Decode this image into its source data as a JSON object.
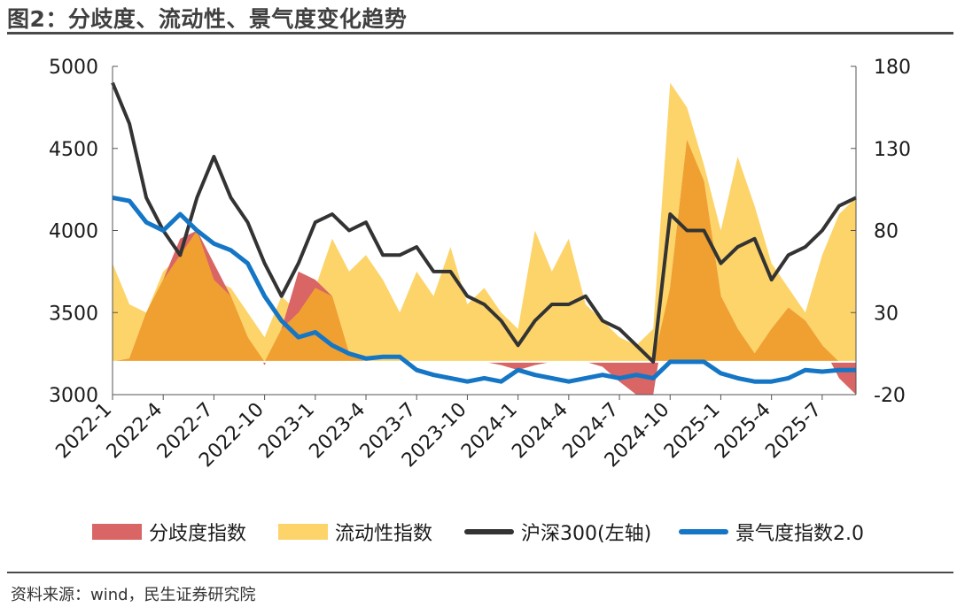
{
  "title": "图2：分歧度、流动性、景气度变化趋势",
  "source": "资料来源：wind，民生证券研究院",
  "colors": {
    "divergence": "#d96565",
    "liquidity": "#fcd46a",
    "overlap": "#f0a030",
    "csi300": "#333333",
    "prosperity": "#1576c6"
  },
  "legend": {
    "divergence": "分歧度指数",
    "liquidity": "流动性指数",
    "csi300": "沪深300(左轴)",
    "prosperity": "景气度指数2.0"
  },
  "chart_data": {
    "type": "line",
    "left_axis": {
      "ylim": [
        3000,
        5000
      ],
      "ticks": [
        "5000",
        "4500",
        "4000",
        "3500",
        "3000"
      ]
    },
    "right_axis": {
      "ylim": [
        -20,
        180
      ],
      "ticks": [
        "180",
        "130",
        "80",
        "30",
        "-20"
      ]
    },
    "x_ticks": [
      "2022-1",
      "2022-4",
      "2022-7",
      "2022-10",
      "2023-1",
      "2023-4",
      "2023-7",
      "2023-10",
      "2024-1",
      "2024-4",
      "2024-7",
      "2024-10",
      "2025-1",
      "2025-4",
      "2025-7"
    ],
    "x_range": [
      "2022-01",
      "2025-09"
    ],
    "series": [
      {
        "name": "分歧度指数",
        "type": "area",
        "axis": "right",
        "points": [
          [
            "2022-01",
            0
          ],
          [
            "2022-02",
            2
          ],
          [
            "2022-03",
            30
          ],
          [
            "2022-04",
            50
          ],
          [
            "2022-05",
            75
          ],
          [
            "2022-06",
            80
          ],
          [
            "2022-07",
            60
          ],
          [
            "2022-08",
            40
          ],
          [
            "2022-09",
            15
          ],
          [
            "2022-10",
            -2
          ],
          [
            "2022-11",
            20
          ],
          [
            "2022-12",
            55
          ],
          [
            "2023-01",
            50
          ],
          [
            "2023-02",
            40
          ],
          [
            "2023-03",
            5
          ],
          [
            "2023-04",
            0
          ],
          [
            "2023-05",
            0
          ],
          [
            "2023-06",
            0
          ],
          [
            "2023-07",
            0
          ],
          [
            "2023-08",
            0
          ],
          [
            "2023-09",
            0
          ],
          [
            "2023-10",
            0
          ],
          [
            "2023-11",
            0
          ],
          [
            "2023-12",
            -2
          ],
          [
            "2024-01",
            -5
          ],
          [
            "2024-02",
            -2
          ],
          [
            "2024-03",
            0
          ],
          [
            "2024-04",
            0
          ],
          [
            "2024-05",
            0
          ],
          [
            "2024-06",
            -3
          ],
          [
            "2024-07",
            -12
          ],
          [
            "2024-08",
            -20
          ],
          [
            "2024-09",
            -20
          ],
          [
            "2024-10",
            45
          ],
          [
            "2024-11",
            135
          ],
          [
            "2024-12",
            110
          ],
          [
            "2025-01",
            40
          ],
          [
            "2025-02",
            20
          ],
          [
            "2025-03",
            5
          ],
          [
            "2025-04",
            20
          ],
          [
            "2025-05",
            33
          ],
          [
            "2025-06",
            25
          ],
          [
            "2025-07",
            10
          ],
          [
            "2025-08",
            -10
          ],
          [
            "2025-09",
            -20
          ]
        ]
      },
      {
        "name": "流动性指数",
        "type": "area",
        "axis": "right",
        "points": [
          [
            "2022-01",
            60
          ],
          [
            "2022-02",
            35
          ],
          [
            "2022-03",
            30
          ],
          [
            "2022-04",
            55
          ],
          [
            "2022-05",
            65
          ],
          [
            "2022-06",
            80
          ],
          [
            "2022-07",
            50
          ],
          [
            "2022-08",
            45
          ],
          [
            "2022-09",
            30
          ],
          [
            "2022-10",
            15
          ],
          [
            "2022-11",
            40
          ],
          [
            "2022-12",
            30
          ],
          [
            "2023-01",
            45
          ],
          [
            "2023-02",
            75
          ],
          [
            "2023-03",
            55
          ],
          [
            "2023-04",
            65
          ],
          [
            "2023-05",
            50
          ],
          [
            "2023-06",
            30
          ],
          [
            "2023-07",
            55
          ],
          [
            "2023-08",
            40
          ],
          [
            "2023-09",
            70
          ],
          [
            "2023-10",
            35
          ],
          [
            "2023-11",
            45
          ],
          [
            "2023-12",
            30
          ],
          [
            "2024-01",
            20
          ],
          [
            "2024-02",
            80
          ],
          [
            "2024-03",
            55
          ],
          [
            "2024-04",
            75
          ],
          [
            "2024-05",
            35
          ],
          [
            "2024-06",
            25
          ],
          [
            "2024-07",
            15
          ],
          [
            "2024-08",
            10
          ],
          [
            "2024-09",
            20
          ],
          [
            "2024-10",
            170
          ],
          [
            "2024-11",
            155
          ],
          [
            "2024-12",
            120
          ],
          [
            "2025-01",
            80
          ],
          [
            "2025-02",
            125
          ],
          [
            "2025-03",
            95
          ],
          [
            "2025-04",
            60
          ],
          [
            "2025-05",
            45
          ],
          [
            "2025-06",
            30
          ],
          [
            "2025-07",
            65
          ],
          [
            "2025-08",
            90
          ],
          [
            "2025-09",
            100
          ]
        ]
      },
      {
        "name": "沪深300(左轴)",
        "type": "line",
        "axis": "left",
        "points": [
          [
            "2022-01",
            4900
          ],
          [
            "2022-02",
            4650
          ],
          [
            "2022-03",
            4200
          ],
          [
            "2022-04",
            4000
          ],
          [
            "2022-05",
            3850
          ],
          [
            "2022-06",
            4200
          ],
          [
            "2022-07",
            4450
          ],
          [
            "2022-08",
            4200
          ],
          [
            "2022-09",
            4050
          ],
          [
            "2022-10",
            3800
          ],
          [
            "2022-11",
            3600
          ],
          [
            "2022-12",
            3800
          ],
          [
            "2023-01",
            4050
          ],
          [
            "2023-02",
            4100
          ],
          [
            "2023-03",
            4000
          ],
          [
            "2023-04",
            4050
          ],
          [
            "2023-05",
            3850
          ],
          [
            "2023-06",
            3850
          ],
          [
            "2023-07",
            3900
          ],
          [
            "2023-08",
            3750
          ],
          [
            "2023-09",
            3750
          ],
          [
            "2023-10",
            3600
          ],
          [
            "2023-11",
            3550
          ],
          [
            "2023-12",
            3450
          ],
          [
            "2024-01",
            3300
          ],
          [
            "2024-02",
            3450
          ],
          [
            "2024-03",
            3550
          ],
          [
            "2024-04",
            3550
          ],
          [
            "2024-05",
            3600
          ],
          [
            "2024-06",
            3450
          ],
          [
            "2024-07",
            3400
          ],
          [
            "2024-08",
            3300
          ],
          [
            "2024-09",
            3200
          ],
          [
            "2024-10",
            4100
          ],
          [
            "2024-11",
            4000
          ],
          [
            "2024-12",
            4000
          ],
          [
            "2025-01",
            3800
          ],
          [
            "2025-02",
            3900
          ],
          [
            "2025-03",
            3950
          ],
          [
            "2025-04",
            3700
          ],
          [
            "2025-05",
            3850
          ],
          [
            "2025-06",
            3900
          ],
          [
            "2025-07",
            4000
          ],
          [
            "2025-08",
            4150
          ],
          [
            "2025-09",
            4200
          ]
        ]
      },
      {
        "name": "景气度指数2.0",
        "type": "line",
        "axis": "right",
        "points": [
          [
            "2022-01",
            100
          ],
          [
            "2022-02",
            98
          ],
          [
            "2022-03",
            85
          ],
          [
            "2022-04",
            80
          ],
          [
            "2022-05",
            90
          ],
          [
            "2022-06",
            80
          ],
          [
            "2022-07",
            72
          ],
          [
            "2022-08",
            68
          ],
          [
            "2022-09",
            60
          ],
          [
            "2022-10",
            40
          ],
          [
            "2022-11",
            25
          ],
          [
            "2022-12",
            15
          ],
          [
            "2023-01",
            18
          ],
          [
            "2023-02",
            10
          ],
          [
            "2023-03",
            5
          ],
          [
            "2023-04",
            2
          ],
          [
            "2023-05",
            3
          ],
          [
            "2023-06",
            3
          ],
          [
            "2023-07",
            -5
          ],
          [
            "2023-08",
            -8
          ],
          [
            "2023-09",
            -10
          ],
          [
            "2023-10",
            -12
          ],
          [
            "2023-11",
            -10
          ],
          [
            "2023-12",
            -12
          ],
          [
            "2024-01",
            -5
          ],
          [
            "2024-02",
            -8
          ],
          [
            "2024-03",
            -10
          ],
          [
            "2024-04",
            -12
          ],
          [
            "2024-05",
            -10
          ],
          [
            "2024-06",
            -8
          ],
          [
            "2024-07",
            -10
          ],
          [
            "2024-08",
            -8
          ],
          [
            "2024-09",
            -10
          ],
          [
            "2024-10",
            0
          ],
          [
            "2024-11",
            0
          ],
          [
            "2024-12",
            0
          ],
          [
            "2025-01",
            -7
          ],
          [
            "2025-02",
            -10
          ],
          [
            "2025-03",
            -12
          ],
          [
            "2025-04",
            -12
          ],
          [
            "2025-05",
            -10
          ],
          [
            "2025-06",
            -5
          ],
          [
            "2025-07",
            -6
          ],
          [
            "2025-08",
            -5
          ],
          [
            "2025-09",
            -5
          ]
        ]
      }
    ]
  }
}
